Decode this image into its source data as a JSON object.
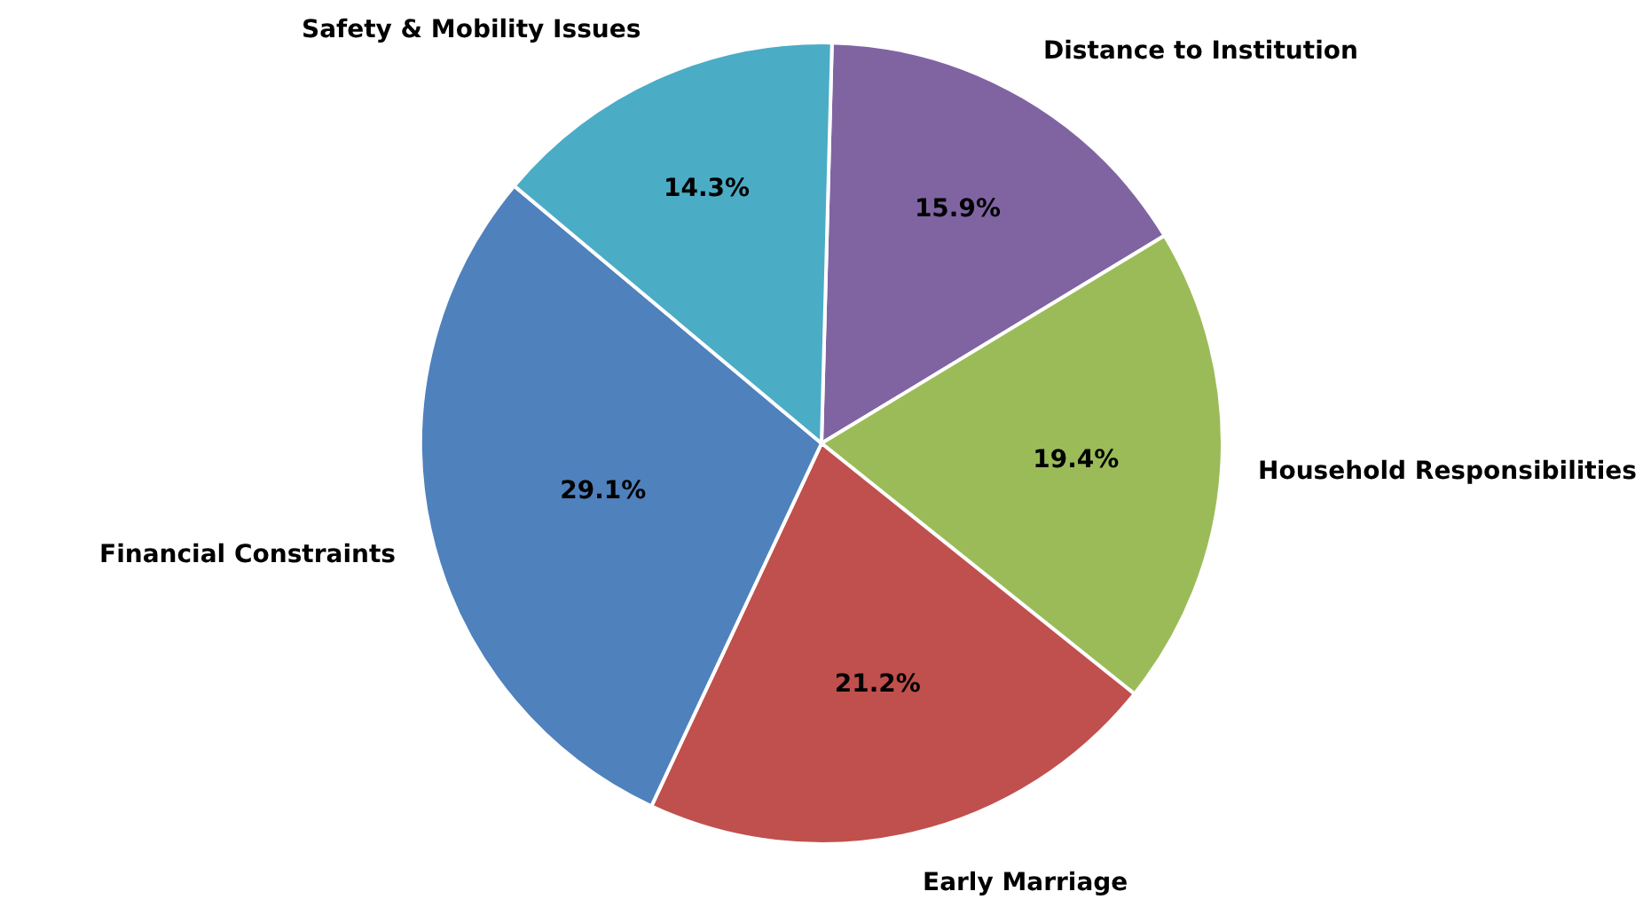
{
  "chart_data": {
    "type": "pie",
    "categories": [
      "Distance to Institution",
      "Household Responsibilities",
      "Early Marriage",
      "Financial Constraints",
      "Safety & Mobility Issues"
    ],
    "values": [
      15.9,
      19.4,
      21.2,
      29.1,
      14.3
    ],
    "value_labels": [
      "15.9%",
      "19.4%",
      "21.2%",
      "29.1%",
      "14.3%"
    ],
    "colors": [
      "#8064a2",
      "#9bbb59",
      "#c0504d",
      "#4f81bd",
      "#4bacc6"
    ],
    "legend": false
  }
}
